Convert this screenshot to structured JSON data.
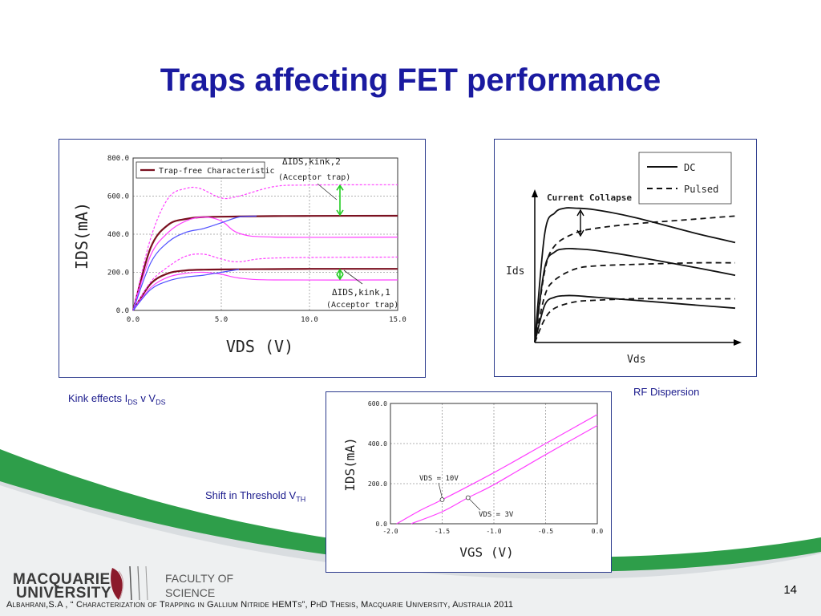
{
  "slide": {
    "title": "Traps affecting FET performance",
    "page_number": "14",
    "citation": "Albahrani,S.A , “ Characterization of Trapping in Gallium Nitride HEMTs”, PhD Thesis, Macquarie University, Australia 2011",
    "colors": {
      "title": "#1a1aa0",
      "frame": "#2b3a8c",
      "caption": "#1a1a8c",
      "wave_green": "#2e9e4a",
      "wave_gray": "#d9dde0"
    }
  },
  "captions": {
    "kink": {
      "text": "Kink effects I",
      "sub1": "DS",
      "mid": " v V",
      "sub2": "DS"
    },
    "rf": "RF Dispersion",
    "threshold": {
      "text": "Shift in Threshold V",
      "sub": "TH"
    }
  },
  "logo": {
    "university_line1": "MACQUARIE",
    "university_line2": "UNIVERSITY",
    "faculty_line1": "FACULTY OF",
    "faculty_line2": "SCIENCE",
    "crest_icon": "lighthouse-crest-icon"
  },
  "chart_data": [
    {
      "type": "line",
      "title": "",
      "xlabel": "VDS (V)",
      "ylabel": "IDS(mA)",
      "xlim": [
        0,
        15
      ],
      "ylim": [
        0,
        800
      ],
      "xticks": [
        "0.0",
        "5.0",
        "10.0",
        "15.0"
      ],
      "yticks": [
        "0.0",
        "200.0",
        "400.0",
        "600.0",
        "800.0"
      ],
      "legend": [
        "Trap-free Characteristic"
      ],
      "annotations": [
        {
          "label": "ΔIDS,kink,2",
          "sub": "(Acceptor trap)"
        },
        {
          "label": "ΔIDS,kink,1",
          "sub": "(Acceptor trap)"
        }
      ],
      "series": [
        {
          "name": "Trap-free Characteristic",
          "x": [
            0,
            1,
            2,
            3,
            4,
            6,
            8,
            10,
            15
          ],
          "y": [
            0,
            330,
            450,
            480,
            490,
            493,
            495,
            496,
            497
          ]
        },
        {
          "x": [
            0,
            1,
            2,
            3,
            4,
            6,
            8,
            10,
            15
          ],
          "y": [
            0,
            140,
            195,
            210,
            214,
            216,
            217,
            218,
            218
          ]
        },
        {
          "x": [
            0,
            1,
            2,
            3,
            3.8,
            5,
            6,
            8,
            10,
            15
          ],
          "y": [
            0,
            380,
            590,
            640,
            640,
            590,
            600,
            650,
            658,
            660
          ]
        },
        {
          "x": [
            0,
            1,
            2,
            3,
            4,
            5,
            6,
            8,
            15
          ],
          "y": [
            0,
            290,
            410,
            470,
            490,
            470,
            405,
            385,
            385
          ]
        },
        {
          "x": [
            0,
            1,
            2,
            3,
            4,
            5,
            6,
            7
          ],
          "y": [
            0,
            250,
            360,
            410,
            430,
            460,
            490,
            495
          ]
        },
        {
          "x": [
            0,
            1,
            2,
            3,
            4,
            5,
            6,
            8,
            15
          ],
          "y": [
            0,
            150,
            230,
            285,
            295,
            270,
            255,
            275,
            280
          ]
        },
        {
          "x": [
            0,
            1,
            2,
            3,
            4,
            5,
            6,
            8,
            15
          ],
          "y": [
            0,
            120,
            175,
            195,
            200,
            190,
            170,
            160,
            160
          ]
        },
        {
          "x": [
            0,
            1,
            2,
            3,
            4,
            5,
            6
          ],
          "y": [
            0,
            110,
            155,
            175,
            185,
            200,
            215
          ]
        }
      ]
    },
    {
      "type": "line",
      "title": "",
      "xlabel": "Vds",
      "ylabel": "Ids",
      "legend": [
        "DC",
        "Pulsed"
      ],
      "annotations": [
        "Current Collapse"
      ],
      "series": [
        {
          "name": "DC",
          "x": [
            0,
            0.5,
            1,
            1.5,
            2,
            3,
            5,
            8,
            10
          ],
          "y": [
            0,
            7.0,
            8.3,
            8.6,
            8.6,
            8.5,
            8.0,
            7.0,
            6.4
          ]
        },
        {
          "name": "DC",
          "x": [
            0,
            0.5,
            1,
            1.5,
            2,
            3,
            5,
            8,
            10
          ],
          "y": [
            0,
            4.8,
            5.8,
            6.0,
            6.0,
            5.9,
            5.5,
            4.8,
            4.3
          ]
        },
        {
          "name": "DC",
          "x": [
            0,
            0.5,
            1,
            1.5,
            2,
            3,
            5,
            8,
            10
          ],
          "y": [
            0,
            2.4,
            2.9,
            3.0,
            3.0,
            2.9,
            2.7,
            2.4,
            2.2
          ]
        },
        {
          "name": "Pulsed",
          "x": [
            0,
            0.5,
            1,
            2,
            3,
            5,
            8,
            10
          ],
          "y": [
            0,
            4.6,
            6.2,
            7.0,
            7.3,
            7.6,
            7.9,
            8.1
          ]
        },
        {
          "name": "Pulsed",
          "x": [
            0,
            0.5,
            1,
            2,
            3,
            5,
            8,
            10
          ],
          "y": [
            0,
            3.0,
            4.0,
            4.7,
            4.9,
            5.0,
            5.1,
            5.1
          ]
        },
        {
          "name": "Pulsed",
          "x": [
            0,
            0.5,
            1,
            2,
            3,
            5,
            8,
            10
          ],
          "y": [
            0,
            1.5,
            2.2,
            2.6,
            2.7,
            2.8,
            2.8,
            2.8
          ]
        }
      ]
    },
    {
      "type": "line",
      "title": "",
      "xlabel": "VGS (V)",
      "ylabel": "IDS(mA)",
      "xlim": [
        -2.0,
        0.0
      ],
      "ylim": [
        0,
        600
      ],
      "xticks": [
        "-2.0",
        "-1.5",
        "-1.0",
        "-0.5",
        "0.0"
      ],
      "yticks": [
        "0.0",
        "200.0",
        "400.0",
        "600.0"
      ],
      "annotations": [
        "VDS = 10V",
        "VDS = 3V"
      ],
      "series": [
        {
          "name": "VDS = 10V",
          "x": [
            -1.94,
            -1.7,
            -1.5,
            -1.0,
            -0.5,
            0.0
          ],
          "y": [
            0,
            70,
            120,
            255,
            400,
            545
          ]
        },
        {
          "name": "VDS = 3V",
          "x": [
            -1.8,
            -1.5,
            -1.25,
            -1.0,
            -0.5,
            0.0
          ],
          "y": [
            0,
            60,
            130,
            195,
            345,
            490
          ]
        }
      ]
    }
  ]
}
